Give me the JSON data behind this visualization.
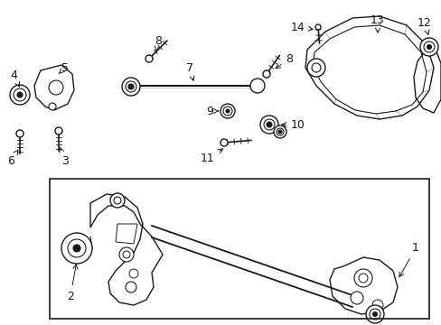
{
  "bg_color": "#ffffff",
  "line_color": "#1a1a1a",
  "fig_width": 4.89,
  "fig_height": 3.6,
  "dpi": 100,
  "font_size": 9
}
